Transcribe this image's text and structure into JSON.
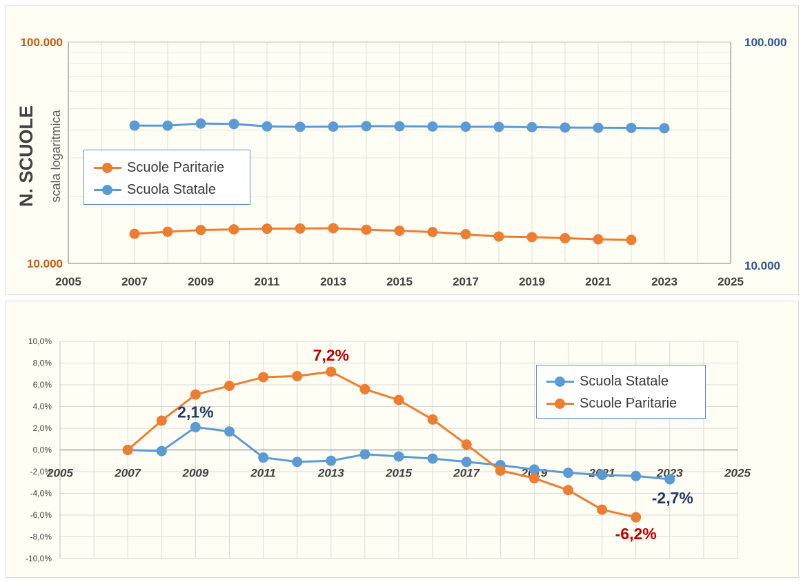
{
  "colors": {
    "paritarie": "#ed7d31",
    "statale": "#5b9bd5",
    "left_axis": "#c55a11",
    "right_axis": "#2f5597",
    "annotation_red": "#c00000",
    "annotation_blue": "#1f3864"
  },
  "chart_data": [
    {
      "type": "line",
      "scale": "log",
      "ylabel": "N. SCUOLE",
      "ylabel_sub": "scala logaritmica",
      "xlim": [
        2005,
        2025
      ],
      "ylim": [
        10000,
        100000
      ],
      "x_ticks": [
        "2005",
        "2007",
        "2009",
        "2011",
        "2013",
        "2015",
        "2017",
        "2019",
        "2021",
        "2023",
        "2025"
      ],
      "y_ticks_left": [
        "100.000",
        "10.000"
      ],
      "y_ticks_right": [
        "100.000",
        "10.000"
      ],
      "grid": true,
      "legend": "middle-left",
      "series": [
        {
          "name": "Scuole Paritarie",
          "color": "#ed7d31",
          "x": [
            2007,
            2008,
            2009,
            2010,
            2011,
            2012,
            2013,
            2014,
            2015,
            2016,
            2017,
            2018,
            2019,
            2020,
            2021,
            2022
          ],
          "values": [
            13600,
            13900,
            14150,
            14250,
            14350,
            14380,
            14420,
            14200,
            14050,
            13860,
            13550,
            13230,
            13150,
            13000,
            12850,
            12770
          ]
        },
        {
          "name": "Scuola Statale",
          "color": "#5b9bd5",
          "x": [
            2007,
            2008,
            2009,
            2010,
            2011,
            2012,
            2013,
            2014,
            2015,
            2016,
            2017,
            2018,
            2019,
            2020,
            2021,
            2022,
            2023
          ],
          "values": [
            41950,
            41920,
            42850,
            42650,
            41600,
            41400,
            41500,
            41700,
            41650,
            41550,
            41460,
            41400,
            41260,
            41100,
            41000,
            40950,
            40800
          ]
        }
      ]
    },
    {
      "type": "line",
      "xlim": [
        2005,
        2025
      ],
      "ylim": [
        -10,
        10
      ],
      "x_ticks": [
        "2005",
        "2007",
        "2009",
        "2011",
        "2013",
        "2015",
        "2017",
        "2019",
        "2021",
        "2023",
        "2025"
      ],
      "y_ticks": [
        "10,0%",
        "8,0%",
        "6,0%",
        "4,0%",
        "2,0%",
        "0,0%",
        "-2,0%",
        "-4,0%",
        "-6,0%",
        "-8,0%",
        "-10,0%"
      ],
      "grid": true,
      "legend": "top-right",
      "series": [
        {
          "name": "Scuola Statale",
          "color": "#5b9bd5",
          "x": [
            2007,
            2008,
            2009,
            2010,
            2011,
            2012,
            2013,
            2014,
            2015,
            2016,
            2017,
            2018,
            2019,
            2020,
            2021,
            2022,
            2023
          ],
          "values": [
            0.0,
            -0.1,
            2.1,
            1.7,
            -0.7,
            -1.1,
            -1.0,
            -0.4,
            -0.6,
            -0.8,
            -1.1,
            -1.4,
            -1.8,
            -2.1,
            -2.3,
            -2.4,
            -2.7
          ]
        },
        {
          "name": "Scuole Paritarie",
          "color": "#ed7d31",
          "x": [
            2007,
            2008,
            2009,
            2010,
            2011,
            2012,
            2013,
            2014,
            2015,
            2016,
            2017,
            2018,
            2019,
            2020,
            2021,
            2022
          ],
          "values": [
            0.0,
            2.7,
            5.1,
            5.9,
            6.7,
            6.8,
            7.2,
            5.6,
            4.6,
            2.8,
            0.5,
            -1.9,
            -2.6,
            -3.7,
            -5.5,
            -6.2
          ]
        }
      ],
      "annotations": [
        {
          "text": "7,2%",
          "x": 2013,
          "y": 7.2,
          "color": "#c00000"
        },
        {
          "text": "2,1%",
          "x": 2009,
          "y": 2.1,
          "color": "#1f3864"
        },
        {
          "text": "-2,7%",
          "x": 2023,
          "y": -2.7,
          "color": "#1f3864"
        },
        {
          "text": "-6,2%",
          "x": 2022,
          "y": -6.2,
          "color": "#c00000"
        }
      ]
    }
  ]
}
